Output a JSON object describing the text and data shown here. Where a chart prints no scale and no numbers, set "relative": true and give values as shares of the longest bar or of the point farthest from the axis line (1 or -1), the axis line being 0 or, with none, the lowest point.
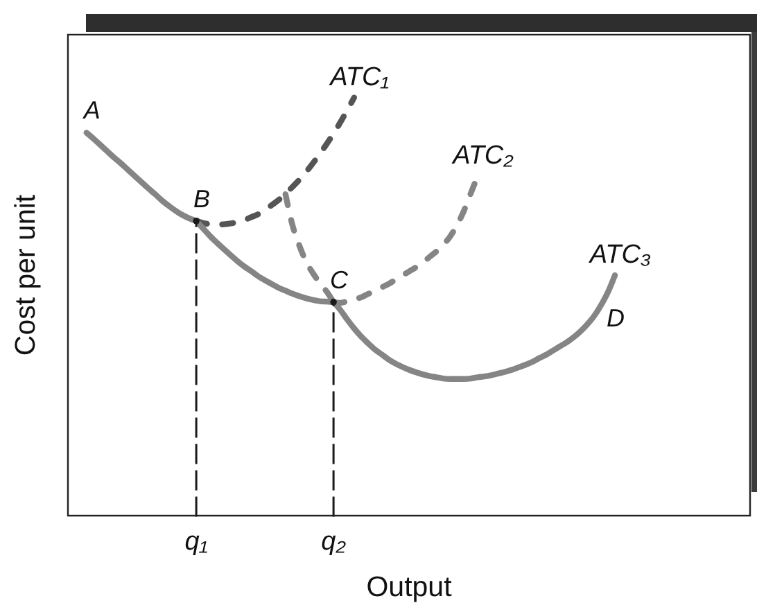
{
  "chart_data": {
    "type": "line",
    "relative": true,
    "xlabel": "Output",
    "ylabel": "Cost per unit",
    "categories": [
      null,
      null,
      null,
      null,
      null,
      null,
      null,
      null,
      null,
      null,
      null,
      null,
      null,
      null,
      null,
      null,
      null,
      null,
      "q₁",
      null,
      null,
      null,
      null,
      null,
      null,
      null,
      null,
      null,
      null,
      null,
      null,
      null,
      null,
      null,
      null,
      null,
      null,
      null,
      "q₂",
      null,
      null,
      null,
      null,
      null,
      null,
      null,
      null,
      null,
      null,
      null,
      null,
      null,
      null,
      null,
      null,
      null,
      null,
      null,
      null,
      null,
      null,
      null,
      null,
      null,
      null,
      null,
      null,
      null,
      null,
      null,
      null,
      null,
      null,
      null,
      null,
      null,
      null,
      null,
      null,
      null,
      null,
      null,
      null,
      null,
      null,
      null,
      null,
      null,
      null,
      null,
      null,
      null,
      null,
      null,
      null,
      null,
      null,
      null,
      null
    ],
    "annotations": [
      {
        "text": "A",
        "y": 0.916
      },
      {
        "text": "B",
        "x": "q₁",
        "y": 0.705
      },
      {
        "text": "C",
        "x": "q₂",
        "y": 0.511
      },
      "D"
    ],
    "series": [
      {
        "color": "#858585",
        "line_style": "solid",
        "values": [
          null,
          null,
          0.916,
          0.902,
          0.887,
          0.872,
          0.857,
          0.843,
          0.828,
          0.813,
          0.798,
          0.783,
          0.769,
          0.754,
          0.741,
          0.729,
          0.719,
          0.711,
          0.705,
          null,
          null,
          null,
          null,
          null,
          null,
          null,
          null,
          null,
          null,
          null,
          null,
          null,
          null,
          null,
          null,
          null,
          null,
          null,
          null,
          null,
          null,
          null,
          null,
          null,
          null,
          null,
          null,
          null,
          null,
          null,
          null,
          null,
          null,
          null,
          null,
          null,
          null,
          null,
          null,
          null,
          null,
          null,
          null,
          null,
          null,
          null,
          null,
          null,
          null,
          null,
          null,
          null,
          null,
          null,
          null,
          null,
          null,
          null,
          null,
          null,
          null,
          null,
          null,
          null,
          null,
          null,
          null,
          null,
          null,
          null,
          null,
          null,
          null,
          null,
          null,
          null,
          null,
          null,
          null
        ]
      },
      {
        "name": "ATC₁",
        "color": "#555555",
        "line_style": "dashed",
        "values": [
          null,
          null,
          null,
          null,
          null,
          null,
          null,
          null,
          null,
          null,
          null,
          null,
          null,
          null,
          null,
          null,
          null,
          null,
          0.705,
          0.7,
          0.697,
          0.696,
          0.697,
          0.699,
          0.702,
          0.707,
          0.714,
          0.721,
          0.731,
          0.743,
          0.755,
          0.77,
          0.786,
          0.803,
          0.822,
          0.843,
          0.865,
          0.889,
          0.914,
          0.941,
          0.97,
          1.0,
          null,
          null,
          null,
          null,
          null,
          null,
          null,
          null,
          null,
          null,
          null,
          null,
          null,
          null,
          null,
          null,
          null,
          null,
          null,
          null,
          null,
          null,
          null,
          null,
          null,
          null,
          null,
          null,
          null,
          null,
          null,
          null,
          null,
          null,
          null,
          null,
          null,
          null,
          null,
          null,
          null,
          null,
          null,
          null,
          null,
          null,
          null,
          null,
          null,
          null,
          null,
          null,
          null,
          null,
          null,
          null,
          null
        ]
      },
      {
        "color": "#858585",
        "line_style": "solid",
        "values": [
          null,
          null,
          null,
          null,
          null,
          null,
          null,
          null,
          null,
          null,
          null,
          null,
          null,
          null,
          null,
          null,
          null,
          null,
          0.705,
          0.687,
          0.669,
          0.653,
          0.638,
          0.623,
          0.609,
          0.596,
          0.585,
          0.573,
          0.563,
          0.554,
          0.545,
          0.538,
          0.531,
          0.525,
          0.52,
          0.516,
          0.513,
          0.512,
          0.511,
          null,
          null,
          null,
          null,
          null,
          null,
          null,
          null,
          null,
          null,
          null,
          null,
          null,
          null,
          null,
          null,
          null,
          null,
          null,
          null,
          null,
          null,
          null,
          null,
          null,
          null,
          null,
          null,
          null,
          null,
          null,
          null,
          null,
          null,
          null,
          null,
          null,
          null,
          null,
          null,
          null,
          null,
          null,
          null,
          null,
          null,
          null,
          null,
          null,
          null,
          null,
          null,
          null,
          null,
          null,
          null,
          null,
          null,
          null,
          null
        ]
      },
      {
        "name": "ATC₂",
        "color": "#858585",
        "line_style": "dashed",
        "values": [
          null,
          null,
          null,
          null,
          null,
          null,
          null,
          null,
          null,
          null,
          null,
          null,
          null,
          null,
          null,
          null,
          null,
          null,
          null,
          null,
          null,
          null,
          null,
          null,
          null,
          null,
          null,
          null,
          null,
          null,
          null,
          null,
          null,
          null,
          null,
          null,
          null,
          null,
          0.511,
          0.509,
          0.513,
          0.518,
          0.522,
          0.53,
          0.537,
          0.546,
          0.554,
          0.564,
          0.574,
          0.584,
          0.594,
          0.605,
          0.619,
          0.632,
          0.648,
          0.668,
          0.695,
          0.729,
          0.771,
          0.812,
          null,
          null,
          null,
          null,
          null,
          null,
          null,
          null,
          null,
          null,
          null,
          null,
          null,
          null,
          null,
          null,
          null,
          null,
          null,
          null,
          null,
          null,
          null,
          null,
          null,
          null,
          null,
          null,
          null,
          null,
          null,
          null,
          null,
          null,
          null,
          null,
          null,
          null,
          null
        ]
      },
      {
        "color": "#858585",
        "line_style": "dashed",
        "values": [
          null,
          null,
          null,
          null,
          null,
          null,
          null,
          null,
          null,
          null,
          null,
          null,
          null,
          null,
          null,
          null,
          null,
          null,
          null,
          null,
          null,
          null,
          null,
          null,
          null,
          null,
          null,
          null,
          null,
          null,
          null,
          0.769,
          0.696,
          0.647,
          0.608,
          0.58,
          0.557,
          0.536,
          0.511,
          null,
          null,
          null,
          null,
          null,
          null,
          null,
          null,
          null,
          null,
          null,
          null,
          null,
          null,
          null,
          null,
          null,
          null,
          null,
          null,
          null,
          null,
          null,
          null,
          null,
          null,
          null,
          null,
          null,
          null,
          null,
          null,
          null,
          null,
          null,
          null,
          null,
          null,
          null,
          null,
          null,
          null,
          null,
          null,
          null,
          null,
          null,
          null,
          null,
          null,
          null,
          null,
          null,
          null,
          null,
          null,
          null,
          null,
          null,
          null
        ]
      },
      {
        "name": "ATC₃",
        "color": "#858585",
        "line_style": "solid",
        "values": [
          null,
          null,
          null,
          null,
          null,
          null,
          null,
          null,
          null,
          null,
          null,
          null,
          null,
          null,
          null,
          null,
          null,
          null,
          null,
          null,
          null,
          null,
          null,
          null,
          null,
          null,
          null,
          null,
          null,
          null,
          null,
          null,
          null,
          null,
          null,
          null,
          null,
          null,
          0.511,
          0.492,
          0.469,
          0.448,
          0.429,
          0.413,
          0.398,
          0.386,
          0.374,
          0.364,
          0.356,
          0.349,
          0.343,
          0.338,
          0.334,
          0.331,
          0.328,
          0.327,
          0.327,
          0.327,
          0.328,
          0.331,
          0.333,
          0.336,
          0.34,
          0.344,
          0.349,
          0.355,
          0.361,
          0.368,
          0.377,
          0.385,
          0.395,
          0.405,
          0.415,
          0.427,
          0.441,
          0.458,
          0.478,
          0.504,
          0.535,
          0.575,
          null,
          null,
          null,
          null,
          null,
          null,
          null,
          null,
          null,
          null,
          null,
          null,
          null,
          null,
          null,
          null,
          null,
          null,
          null
        ]
      },
      {
        "type": "lollipop",
        "marker": "circle",
        "color": "#1a1a1a",
        "line_style": "dashed",
        "values": [
          null,
          null,
          null,
          null,
          null,
          null,
          null,
          null,
          null,
          null,
          null,
          null,
          null,
          null,
          null,
          null,
          null,
          null,
          0.705,
          null,
          null,
          null,
          null,
          null,
          null,
          null,
          null,
          null,
          null,
          null,
          null,
          null,
          null,
          null,
          null,
          null,
          null,
          null,
          0.511,
          null,
          null,
          null,
          null,
          null,
          null,
          null,
          null,
          null,
          null,
          null,
          null,
          null,
          null,
          null,
          null,
          null,
          null,
          null,
          null,
          null,
          null,
          null,
          null,
          null,
          null,
          null,
          null,
          null,
          null,
          null,
          null,
          null,
          null,
          null,
          null,
          null,
          null,
          null,
          null,
          null,
          null,
          null,
          null,
          null,
          null,
          null,
          null,
          null,
          null,
          null,
          null,
          null,
          null,
          null,
          null,
          null,
          null,
          null,
          null
        ]
      }
    ]
  }
}
